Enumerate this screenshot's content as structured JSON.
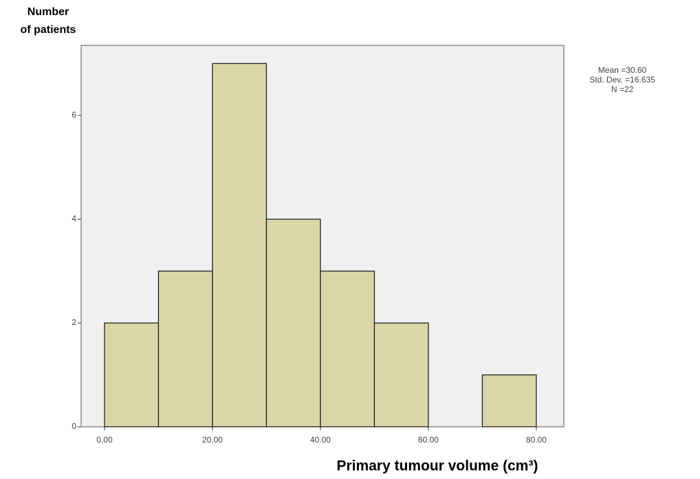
{
  "chart_data": {
    "type": "histogram",
    "y_label": [
      "Number",
      "of patients"
    ],
    "x_label": "Primary tumour volume (cm³)",
    "stats": [
      "Mean =30.60",
      "Std. Dev. =16.635",
      "N =22"
    ],
    "bins": [
      0,
      10,
      20,
      30,
      40,
      50,
      60,
      70,
      80
    ],
    "values": [
      2,
      3,
      7,
      4,
      3,
      2,
      0,
      1
    ],
    "color": "#dbd6a8",
    "background": "#f0f0f0",
    "xlim": [
      -4.33,
      85.1
    ],
    "ylim": [
      0,
      7.35
    ],
    "xticks": [
      {
        "value": 0,
        "label": "0.00"
      },
      {
        "value": 20,
        "label": "20.00"
      },
      {
        "value": 40,
        "label": "40.00"
      },
      {
        "value": 60,
        "label": "60.00"
      },
      {
        "value": 80,
        "label": "80.00"
      }
    ],
    "yticks": [
      0,
      2,
      4,
      6
    ]
  }
}
